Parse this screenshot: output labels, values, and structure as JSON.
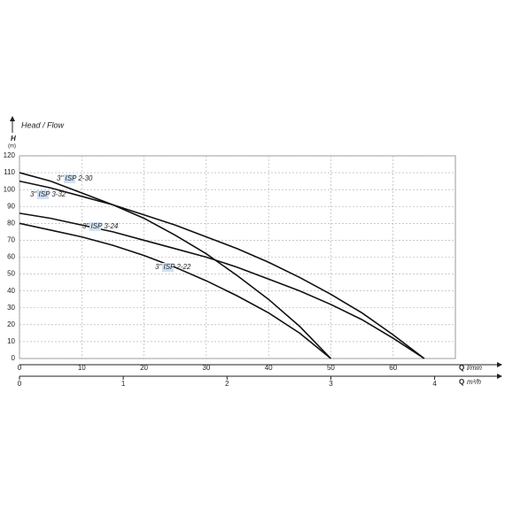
{
  "chart_data": {
    "type": "line",
    "title": "Head / Flow",
    "y_label": "H",
    "y_unit": "(m)",
    "x_label": "Q",
    "x_unit": "l/min",
    "x2_label": "Q",
    "x2_unit": "m³/h",
    "x": [
      0,
      5,
      10,
      15,
      20,
      25,
      30,
      35,
      40,
      45,
      50,
      55,
      60,
      65
    ],
    "xlim": [
      0,
      70
    ],
    "xticks": [
      0,
      10,
      20,
      30,
      40,
      50,
      60
    ],
    "x2lim": [
      0,
      4.2
    ],
    "x2ticks": [
      0,
      1,
      2,
      3,
      4
    ],
    "ylim": [
      0,
      120
    ],
    "yticks": [
      0,
      10,
      20,
      30,
      40,
      50,
      60,
      70,
      80,
      90,
      100,
      110,
      120
    ],
    "grid": true,
    "series": [
      {
        "name": "3\" ISP 2-30",
        "color": "#111",
        "values": [
          110,
          105,
          98,
          91,
          83,
          73,
          62,
          49,
          35,
          19,
          0,
          null,
          null,
          null
        ]
      },
      {
        "name": "3\" ISP 3-32",
        "color": "#111",
        "values": [
          105,
          101,
          96,
          91,
          85,
          79,
          72,
          65,
          57,
          48,
          38,
          27,
          14,
          0
        ]
      },
      {
        "name": "3\" ISP 3-24",
        "color": "#111",
        "values": [
          86,
          83,
          79,
          75,
          70,
          65,
          60,
          54,
          47,
          40,
          32,
          23,
          12,
          0
        ]
      },
      {
        "name": "3\" ISP 2-22",
        "color": "#111",
        "values": [
          80,
          76,
          72,
          67,
          61,
          54,
          46,
          37,
          27,
          15,
          0,
          null,
          null,
          null
        ]
      }
    ]
  }
}
